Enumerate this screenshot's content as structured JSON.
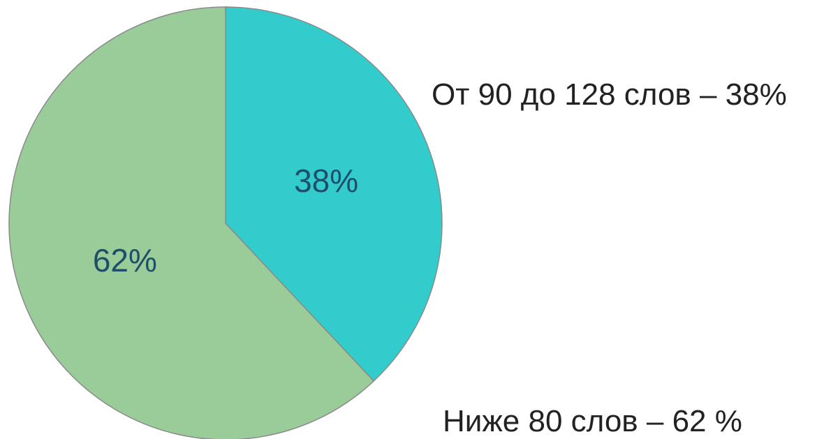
{
  "chart_data": {
    "type": "pie",
    "slices": [
      {
        "label": "От 90 до 128 слов – 38%",
        "value": 38,
        "data_label": "38%",
        "color": "#33cccc"
      },
      {
        "label": "Ниже 80 слов – 62 %",
        "value": 62,
        "data_label": "62%",
        "color": "#99cc99"
      }
    ],
    "start_angle": "12 o'clock",
    "direction": "clockwise",
    "edge_color": "#8a8a8a",
    "data_label_color": "#1f4e6b"
  }
}
